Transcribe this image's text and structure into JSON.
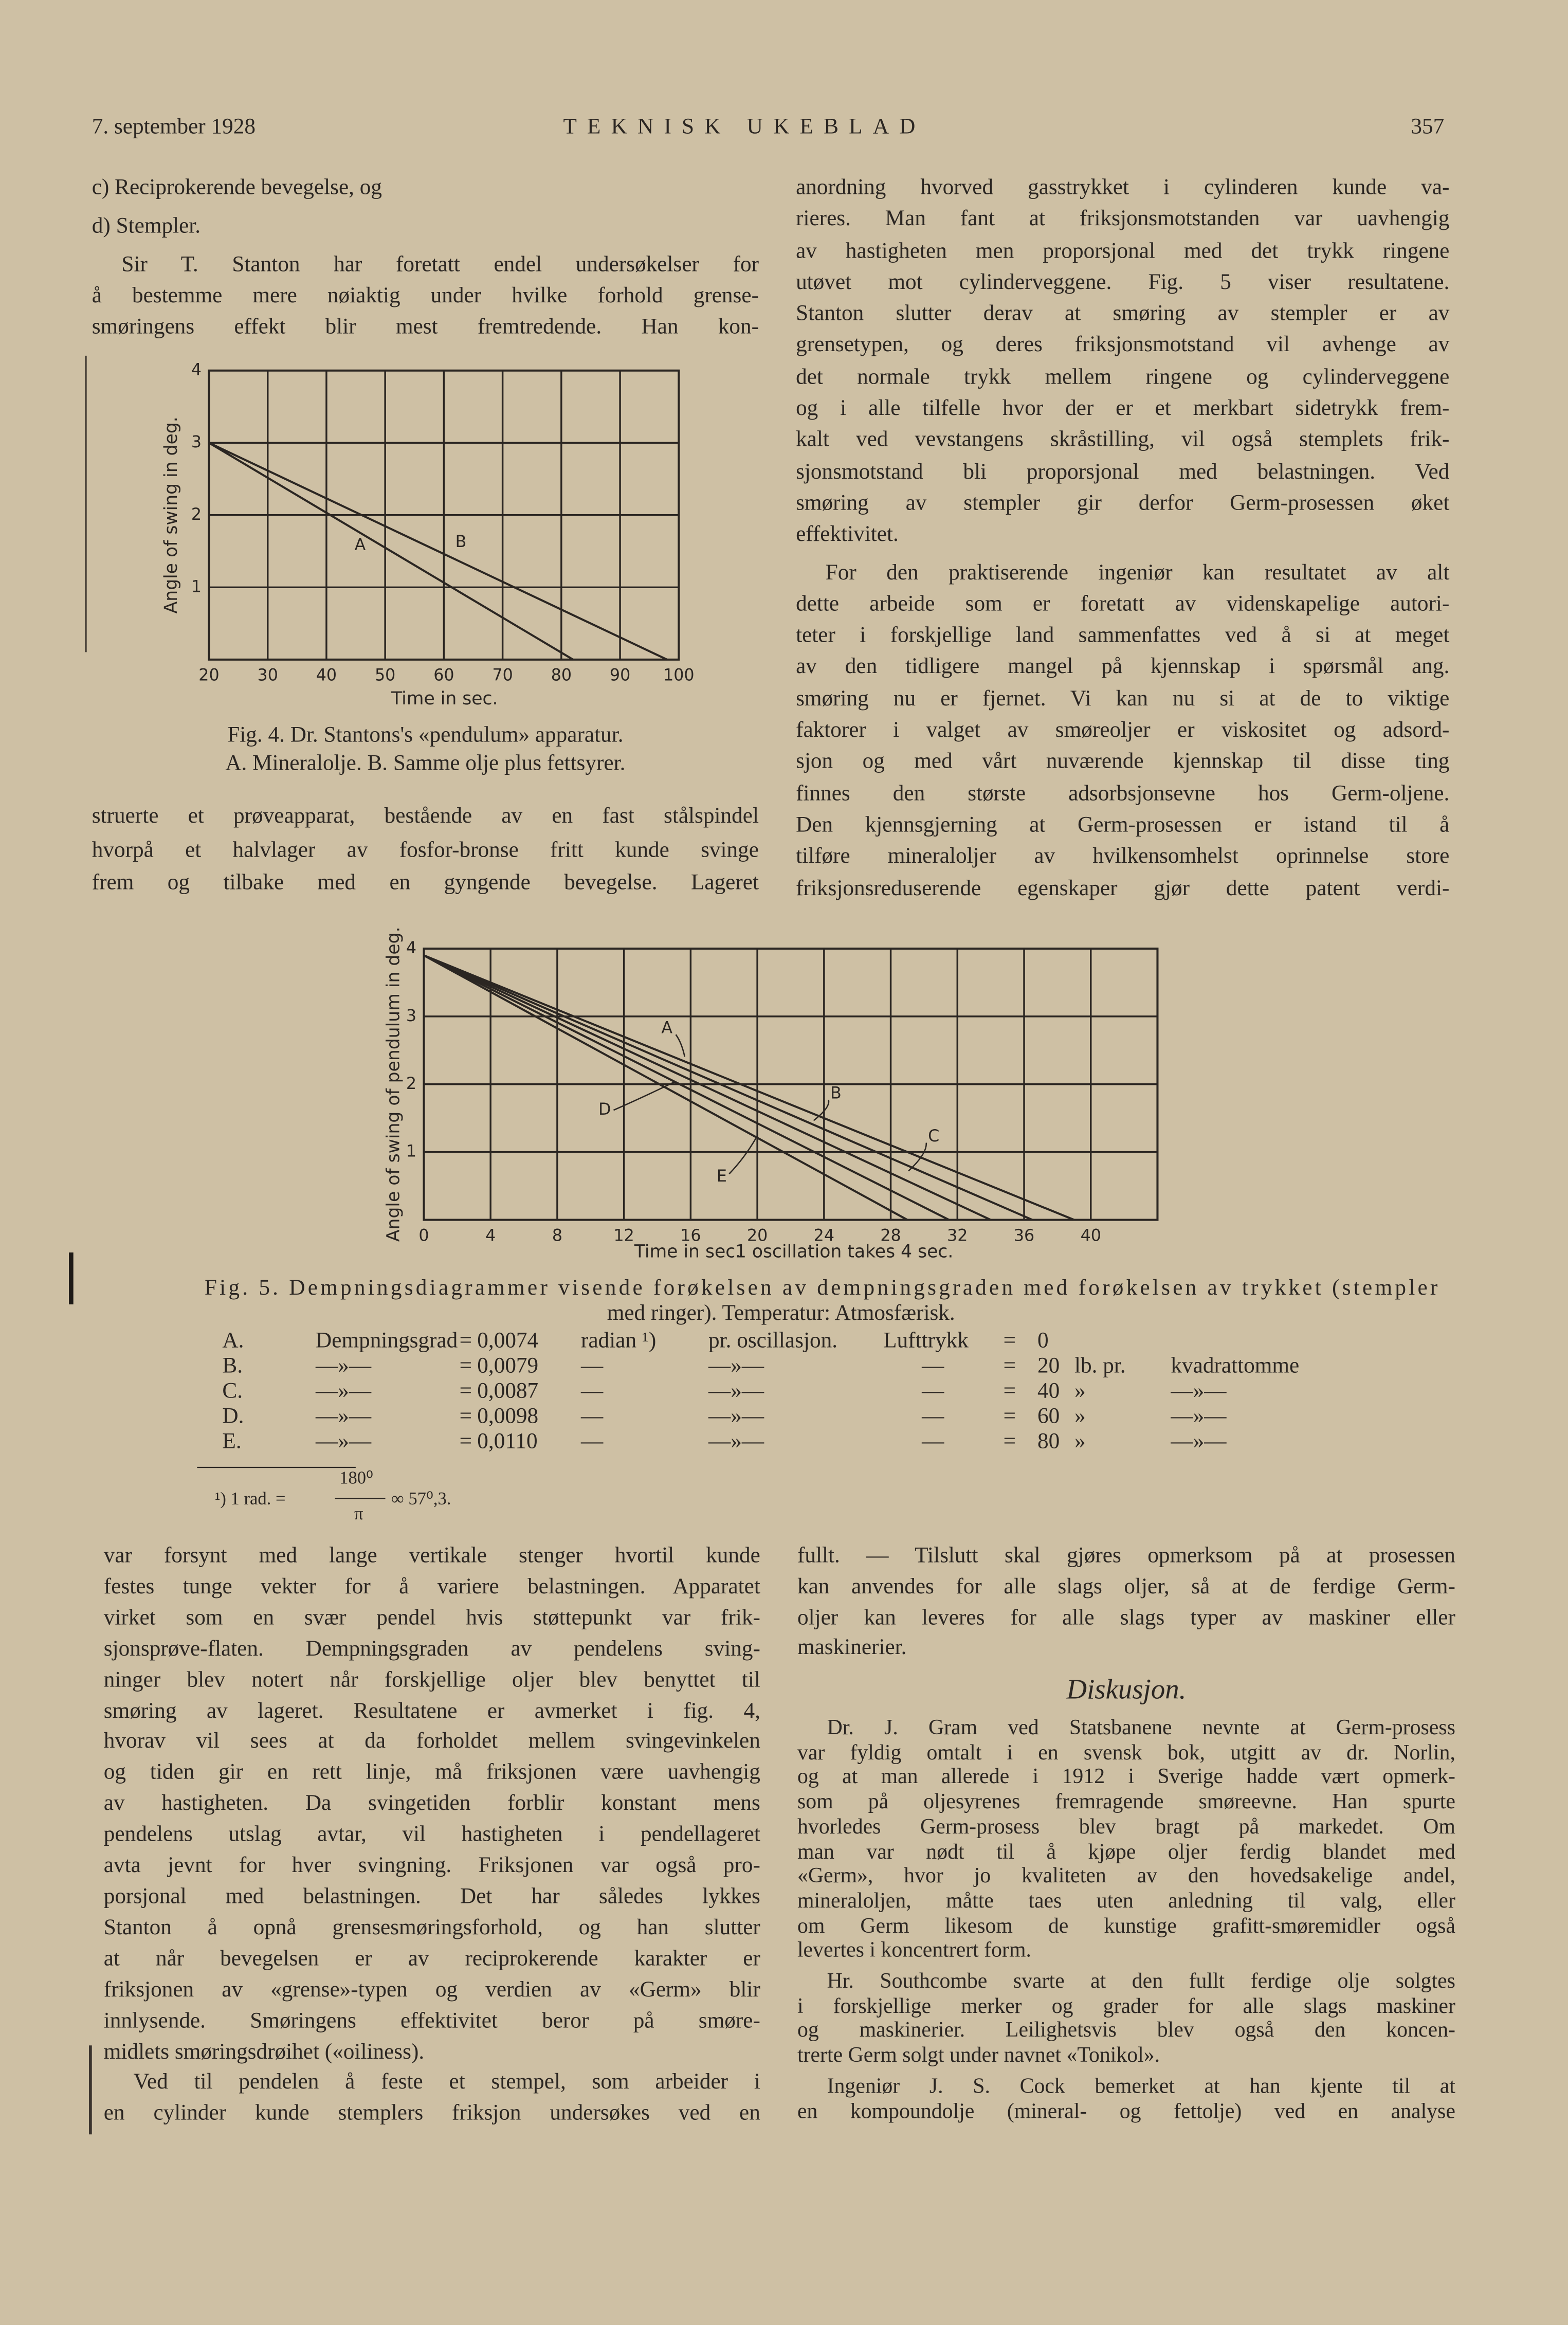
{
  "header": {
    "date": "7. september 1928",
    "title": "TEKNISK UKEBLAD",
    "page": "357"
  },
  "top_left": {
    "paragraphs": [
      {
        "indent": false,
        "lines": [
          "c) Reciprokerende bevegelse, og"
        ]
      },
      {
        "indent": false,
        "lines": [
          "d) Stempler."
        ]
      },
      {
        "indent": true,
        "lines": [
          "Sir T. Stanton har foretatt endel undersøkelser for",
          "å bestemme mere nøiaktig under hvilke forhold grense-",
          "smøringens effekt blir mest fremtredende. Han kon-"
        ]
      }
    ]
  },
  "figure_4": {
    "y_label": "Angle of swing in deg.",
    "x_label": "Time in sec.",
    "xlim": [
      20,
      100
    ],
    "ylim": [
      0,
      4
    ],
    "xticks": [
      20,
      30,
      40,
      50,
      60,
      70,
      80,
      90,
      100
    ],
    "yticks": [
      1,
      2,
      3,
      4
    ],
    "grid": true,
    "series": [
      {
        "name": "A",
        "x": [
          20,
          82
        ],
        "y": [
          3,
          0
        ]
      },
      {
        "name": "B",
        "x": [
          20,
          98
        ],
        "y": [
          3,
          0
        ]
      }
    ],
    "caption": [
      "Fig. 4. Dr. Stantons's «pendulum» apparatur.",
      "A. Mineralolje. B. Samme olje plus fettsyrer."
    ]
  },
  "top_left_after": {
    "paragraphs": [
      {
        "indent": false,
        "lines": [
          "struerte et prøveapparat, bestående av en fast stålspindel",
          "hvorpå et halvlager av fosfor-bronse fritt kunde svinge",
          "frem og tilbake med en gyngende bevegelse. Lageret"
        ]
      }
    ]
  },
  "top_right": {
    "paragraphs": [
      {
        "indent": false,
        "lines": [
          "anordning hvorved gasstrykket i cylinderen kunde va-",
          "rieres. Man fant at friksjonsmotstanden var uavhengig",
          "av hastigheten men proporsjonal med det trykk ringene",
          "utøvet mot cylinderveggene. Fig. 5 viser resultatene.",
          "Stanton slutter derav at smøring av stempler er av",
          "grensetypen, og deres friksjonsmotstand vil avhenge av",
          "det normale trykk mellem ringene og cylinderveggene",
          "og i alle tilfelle hvor der er et merkbart sidetrykk frem-",
          "kalt ved vevstangens skråstilling, vil også stemplets frik-",
          "sjonsmotstand bli proporsjonal med belastningen. Ved",
          "smøring av stempler gir derfor Germ-prosessen øket",
          "effektivitet."
        ]
      },
      {
        "indent": true,
        "lines": [
          "For den praktiserende ingeniør kan resultatet av alt",
          "dette arbeide som er foretatt av videnskapelige autori-",
          "teter i forskjellige land sammenfattes ved å si at meget",
          "av den tidligere mangel på kjennskap i spørsmål ang.",
          "smøring nu er fjernet. Vi kan nu si at de to viktige",
          "faktorer i valget av smøreoljer er viskositet og adsord-",
          "sjon og med vårt nuværende kjennskap til disse ting",
          "finnes den største adsorbsjonsevne hos Germ-oljene.",
          "Den kjennsgjerning at Germ-prosessen er istand til å",
          "tilføre mineraloljer av hvilkensomhelst oprinnelse store",
          "friksjonsreduserende egenskaper gjør dette patent verdi-"
        ]
      }
    ]
  },
  "figure_5": {
    "y_label": "Angle of swing of pendulum in deg.",
    "x_label": "Time in sec.",
    "x_note": "1 oscillation takes 4 sec.",
    "xlim": [
      0,
      44
    ],
    "ylim": [
      0,
      4
    ],
    "xticks": [
      0,
      4,
      8,
      12,
      16,
      20,
      24,
      28,
      32,
      36,
      40
    ],
    "yticks": [
      1,
      2,
      3,
      4
    ],
    "grid": true,
    "series": [
      {
        "name": "A",
        "x": [
          0,
          39
        ],
        "y": [
          3.9,
          0
        ]
      },
      {
        "name": "B",
        "x": [
          0,
          36.5
        ],
        "y": [
          3.9,
          0
        ]
      },
      {
        "name": "C",
        "x": [
          0,
          34
        ],
        "y": [
          3.9,
          0
        ]
      },
      {
        "name": "D",
        "x": [
          0,
          31.5
        ],
        "y": [
          3.9,
          0
        ]
      },
      {
        "name": "E",
        "x": [
          0,
          29
        ],
        "y": [
          3.9,
          0
        ]
      }
    ],
    "caption": [
      "Fig. 5. Dempningsdiagrammer visende forøkelsen av dempningsgraden med forøkelsen av trykket (stempler",
      "med ringer). Temperatur: Atmosfærisk."
    ],
    "table": [
      [
        "A.",
        "Dempningsgrad",
        "=",
        "0,0074",
        "radian ¹)",
        "pr. oscillasjon.",
        "Lufttrykk",
        "=",
        "0"
      ],
      [
        "B.",
        "—»—",
        "=",
        "0,0079",
        "—",
        "—»—",
        "—",
        "=",
        "20",
        "lb. pr.",
        "kvadrattomme"
      ],
      [
        "C.",
        "—»—",
        "=",
        "0,0087",
        "—",
        "—»—",
        "—",
        "=",
        "40",
        "»",
        "—»—"
      ],
      [
        "D.",
        "—»—",
        "=",
        "0,0098",
        "—",
        "—»—",
        "—",
        "=",
        "60",
        "»",
        "—»—"
      ],
      [
        "E.",
        "—»—",
        "=",
        "0,0110",
        "—",
        "—»—",
        "—",
        "=",
        "80",
        "»",
        "—»—"
      ]
    ],
    "footnote": {
      "lead": "¹) 1 rad. =",
      "numerator": "180⁰",
      "denominator": "π",
      "result": "∞ 57⁰,3."
    }
  },
  "bottom_left": {
    "paragraphs": [
      {
        "indent": false,
        "lines": [
          "var forsynt med lange vertikale stenger hvortil kunde",
          "festes tunge vekter for å variere belastningen. Apparatet",
          "virket som en svær pendel hvis støttepunkt var frik-",
          "sjonsprøve-flaten. Dempningsgraden av pendelens sving-",
          "ninger blev notert når forskjellige oljer blev benyttet til",
          "smøring av lageret. Resultatene er avmerket i fig. 4,",
          "hvorav vil sees at da forholdet mellem svingevinkelen",
          "og tiden gir en rett linje, må friksjonen være uavhengig",
          "av hastigheten. Da svingetiden forblir konstant mens",
          "pendelens utslag avtar, vil hastigheten i pendellageret",
          "avta jevnt for hver svingning. Friksjonen var også pro-",
          "porsjonal med belastningen. Det har således lykkes",
          "Stanton å opnå grensesmøringsforhold, og han slutter",
          "at når bevegelsen er av reciprokerende karakter er",
          "friksjonen av «grense»-typen og verdien av «Germ» blir",
          "innlysende. Smøringens effektivitet beror på smøre-",
          "midlets smøringsdrøihet («oiliness)."
        ]
      },
      {
        "indent": true,
        "lines": [
          "Ved til pendelen å feste et stempel, som arbeider i",
          "en cylinder kunde stemplers friksjon undersøkes ved en"
        ]
      }
    ]
  },
  "bottom_right": {
    "paragraphs": [
      {
        "indent": false,
        "lines": [
          "fullt. — Tilslutt skal gjøres opmerksom på at prosessen",
          "kan anvendes for alle slags oljer, så at de ferdige Germ-",
          "oljer kan leveres for alle slags typer av maskiner eller",
          "maskinerier."
        ]
      }
    ]
  },
  "discussion": {
    "heading": "Diskusjon.",
    "paragraphs": [
      {
        "indent": true,
        "lines": [
          "Dr. J. Gram ved Statsbanene nevnte at Germ-prosess",
          "var fyldig omtalt i en svensk bok, utgitt av dr. Norlin,",
          "og at man allerede i 1912 i Sverige hadde vært opmerk-",
          "som på oljesyrenes fremragende smøreevne. Han spurte",
          "hvorledes Germ-prosess blev bragt på markedet. Om",
          "man var nødt til å kjøpe oljer ferdig blandet med",
          "«Germ», hvor jo kvaliteten av den hovedsakelige andel,",
          "mineraloljen, måtte taes uten anledning til valg, eller",
          "om Germ likesom de kunstige grafitt-smøremidler også",
          "levertes i koncentrert form."
        ]
      },
      {
        "indent": true,
        "lines": [
          "Hr. Southcombe svarte at den fullt ferdige olje solgtes",
          "i forskjellige merker og grader for alle slags maskiner",
          "og maskinerier. Leilighetsvis blev også den koncen-",
          "trerte Germ solgt under navnet «Tonikol»."
        ]
      },
      {
        "indent": true,
        "lines": [
          "Ingeniør J. S. Cock bemerket at han kjente til at",
          "en kompoundolje (mineral- og fettolje) ved en analyse"
        ]
      }
    ]
  }
}
